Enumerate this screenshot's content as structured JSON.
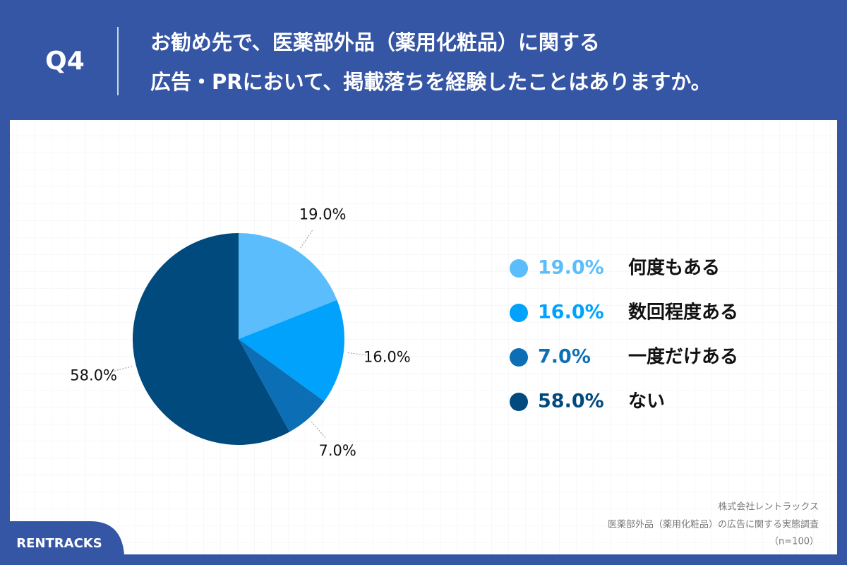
{
  "header": {
    "label": "Q4",
    "title_lines": [
      "お勧め先で、医薬部外品（薬用化粧品）に関する",
      "広告・PRにおいて、掲載落ちを経験したことはありますか。"
    ]
  },
  "chart_data": {
    "type": "pie",
    "categories": [
      "何度もある",
      "数回程度ある",
      "一度だけある",
      "ない"
    ],
    "values": [
      19,
      16,
      7,
      58
    ],
    "value_labels": [
      "19.0%",
      "16.0%",
      "7.0%",
      "58.0%"
    ],
    "colors": [
      "#5bbdfb",
      "#00a2fb",
      "#0c6fb6",
      "#004a7e"
    ]
  },
  "footer": {
    "source_lines": [
      "株式会社レントラックス",
      "医薬部外品（薬用化粧品）の広告に関する実態調査",
      "（n=100）"
    ],
    "logo": "RENTRACKS"
  }
}
